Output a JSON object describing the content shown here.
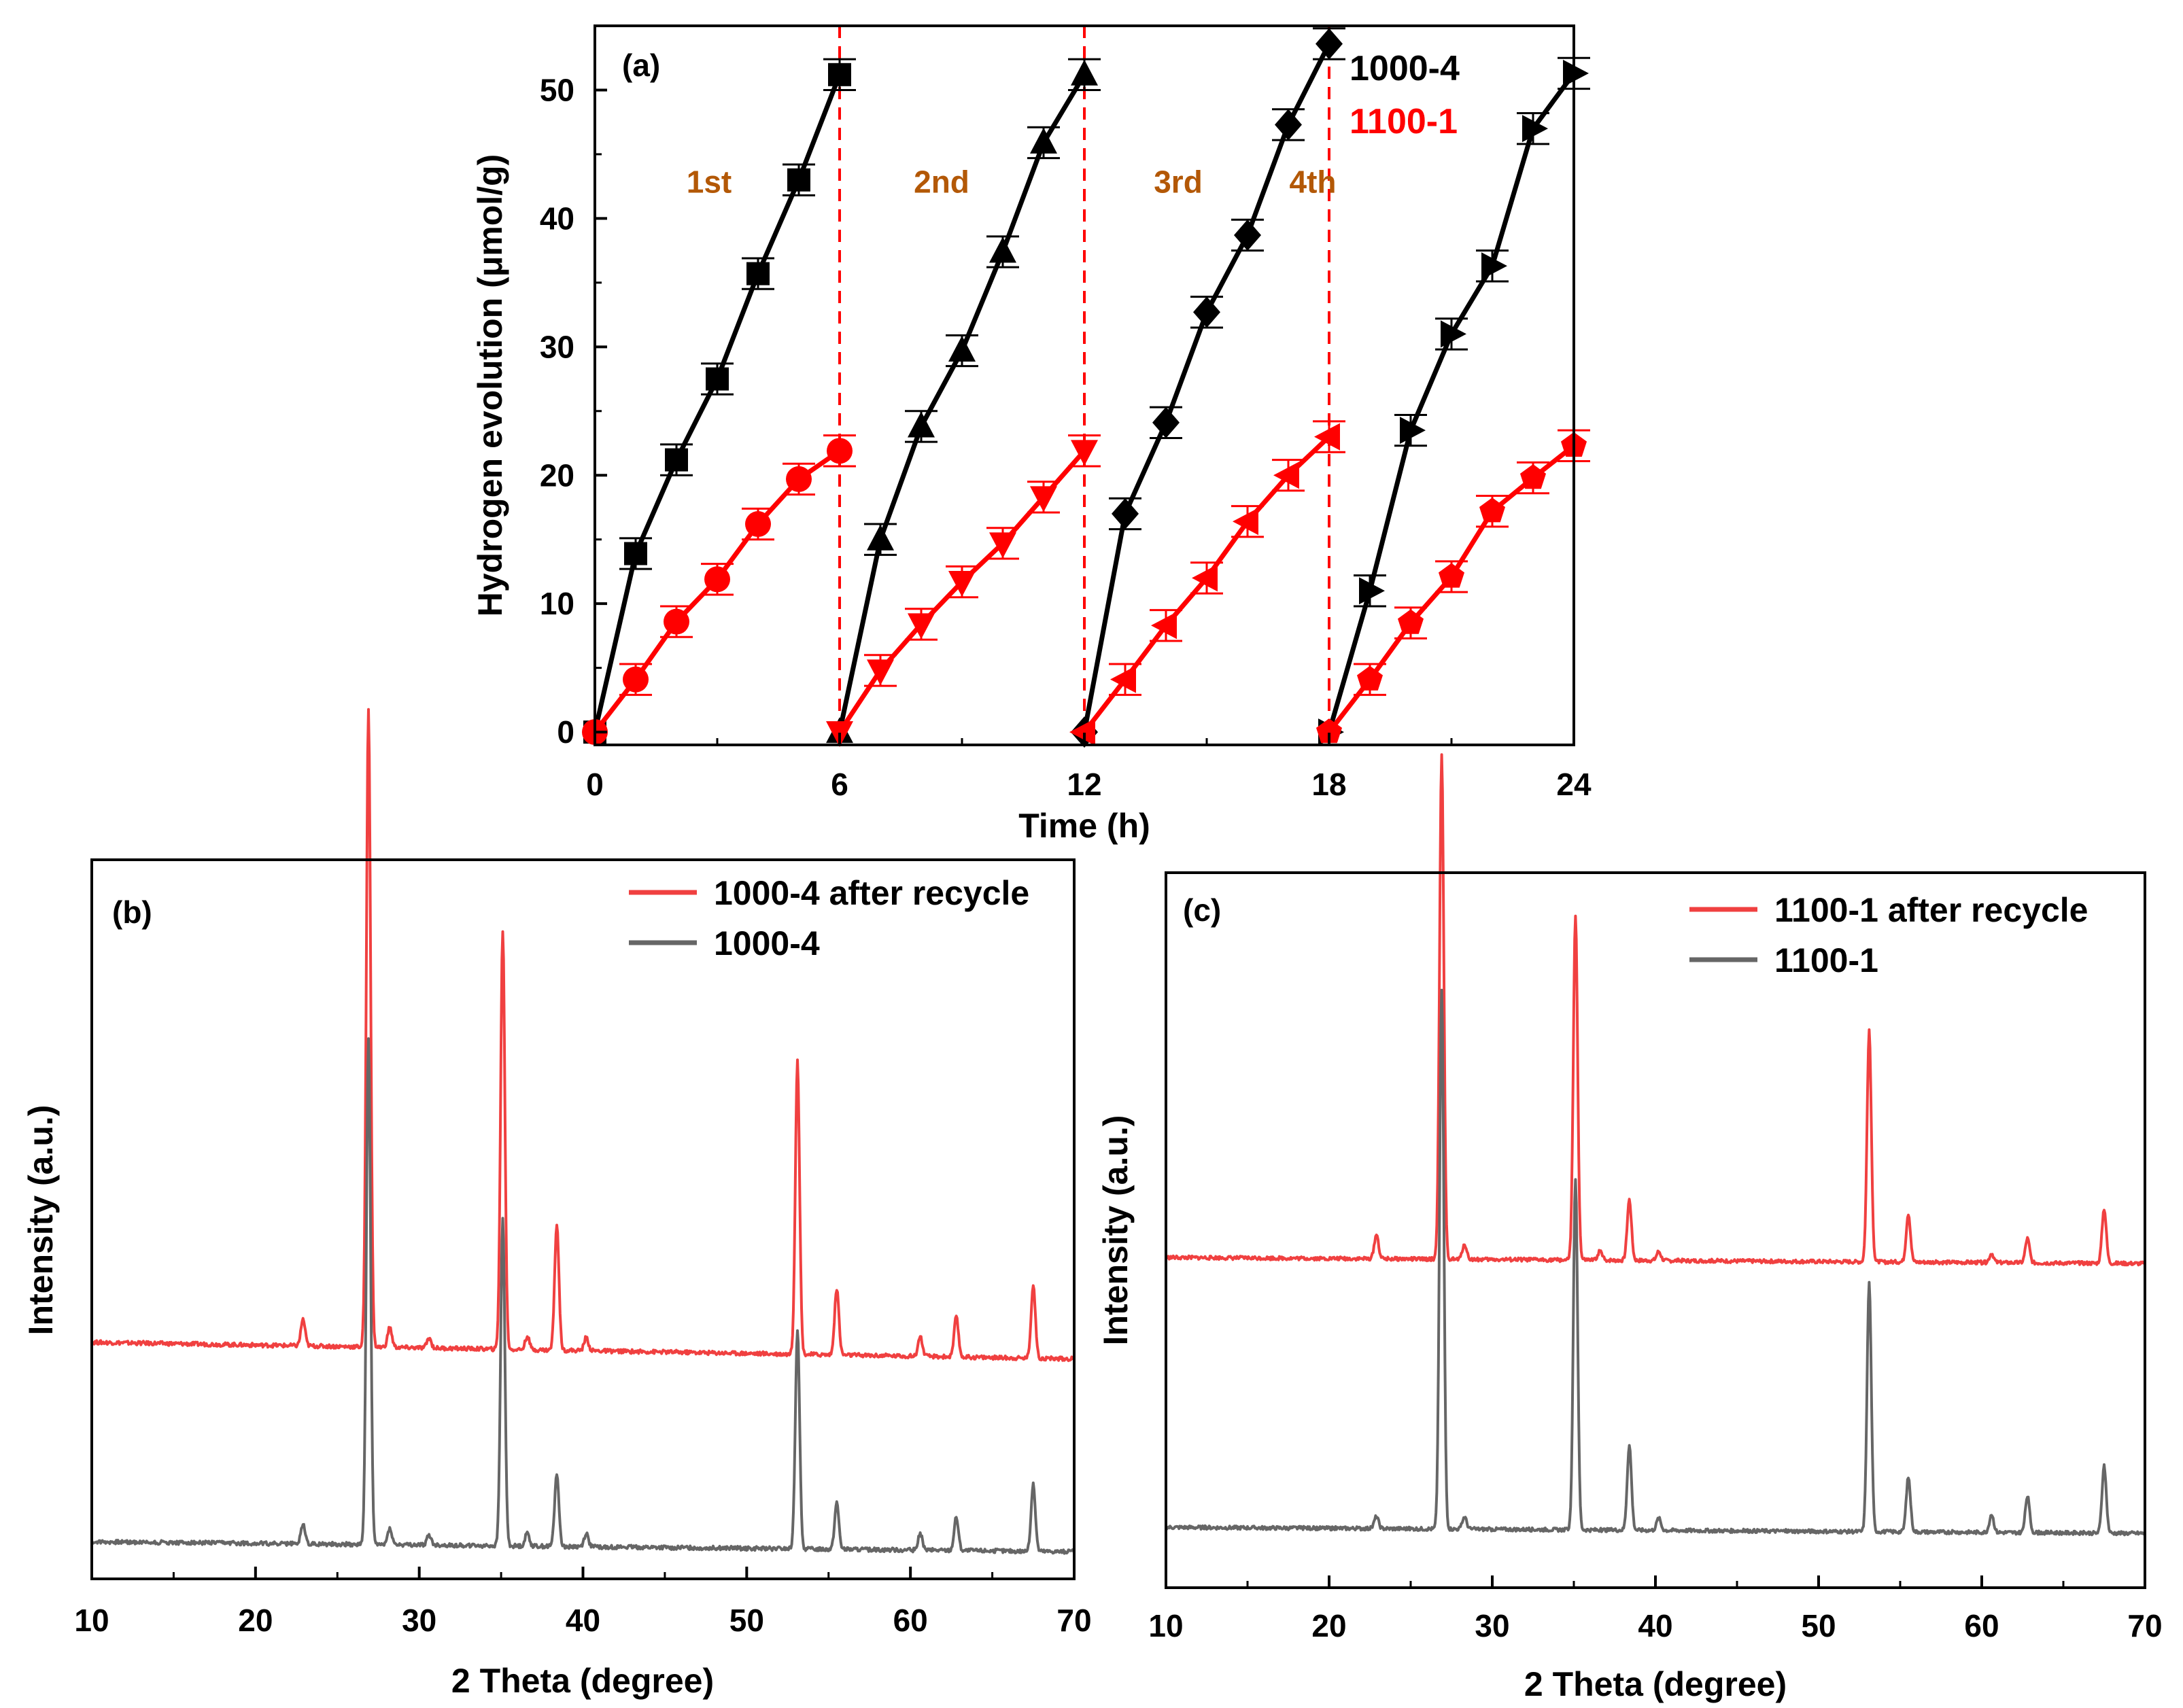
{
  "colors": {
    "black": "#000000",
    "red": "#ff0000",
    "red_xrd": "#f04040",
    "gray_xrd": "#666666",
    "cycle_label": "#b35806",
    "divider": "#ff0000"
  },
  "chart_data": [
    {
      "panel": "(a)",
      "type": "line",
      "xlabel": "Time (h)",
      "ylabel": "Hydrogen evolution (μmol/g)",
      "xlim": [
        0,
        24
      ],
      "ylim": [
        -1,
        55
      ],
      "xticks": [
        "0",
        "6",
        "12",
        "18",
        "24"
      ],
      "yticks": [
        "0",
        "10",
        "20",
        "30",
        "40",
        "50"
      ],
      "dividers_x": [
        6,
        12,
        18
      ],
      "cycle_labels": [
        {
          "text": "1st",
          "x": 2.8,
          "y": 42
        },
        {
          "text": "2nd",
          "x": 8.5,
          "y": 42
        },
        {
          "text": "3rd",
          "x": 14.3,
          "y": 42
        },
        {
          "text": "4th",
          "x": 17.6,
          "y": 42
        }
      ],
      "legend": [
        {
          "text": "1000-4",
          "color": "#000000"
        },
        {
          "text": "1100-1",
          "color": "#ff0000"
        }
      ],
      "error": 1.2,
      "series": [
        {
          "name": "1000-4 cycle 1",
          "color": "#000000",
          "marker": "square",
          "x": [
            0,
            1,
            2,
            3,
            4,
            5,
            6
          ],
          "y": [
            0,
            13.9,
            21.2,
            27.5,
            35.7,
            43.0,
            51.2
          ]
        },
        {
          "name": "1000-4 cycle 2",
          "color": "#000000",
          "marker": "triangle-up",
          "x": [
            6,
            7,
            8,
            9,
            10,
            11,
            12
          ],
          "y": [
            0,
            15.0,
            23.8,
            29.7,
            37.4,
            45.9,
            51.2
          ]
        },
        {
          "name": "1000-4 cycle 3",
          "color": "#000000",
          "marker": "diamond",
          "x": [
            12,
            13,
            14,
            15,
            16,
            17,
            18
          ],
          "y": [
            0,
            17.0,
            24.1,
            32.7,
            38.7,
            47.3,
            53.6
          ]
        },
        {
          "name": "1000-4 cycle 4",
          "color": "#000000",
          "marker": "triangle-right",
          "x": [
            18,
            19,
            20,
            21,
            22,
            23,
            24
          ],
          "y": [
            0,
            11.0,
            23.5,
            31.0,
            36.3,
            47.0,
            51.3
          ]
        },
        {
          "name": "1100-1 cycle 1",
          "color": "#ff0000",
          "marker": "circle",
          "x": [
            0,
            1,
            2,
            3,
            4,
            5,
            6
          ],
          "y": [
            0,
            4.1,
            8.6,
            11.9,
            16.2,
            19.7,
            21.9
          ]
        },
        {
          "name": "1100-1 cycle 2",
          "color": "#ff0000",
          "marker": "triangle-down",
          "x": [
            6,
            7,
            8,
            9,
            10,
            11,
            12
          ],
          "y": [
            0,
            4.8,
            8.4,
            11.7,
            14.7,
            18.3,
            21.9
          ]
        },
        {
          "name": "1100-1 cycle 3",
          "color": "#ff0000",
          "marker": "triangle-left",
          "x": [
            12,
            13,
            14,
            15,
            16,
            17,
            18
          ],
          "y": [
            0,
            4.1,
            8.3,
            12.0,
            16.4,
            20.0,
            23.0
          ]
        },
        {
          "name": "1100-1 cycle 4",
          "color": "#ff0000",
          "marker": "pentagon",
          "x": [
            18,
            19,
            20,
            21,
            22,
            23,
            24
          ],
          "y": [
            0,
            4.1,
            8.5,
            12.1,
            17.2,
            19.8,
            22.3
          ]
        }
      ]
    },
    {
      "panel": "(b)",
      "type": "line",
      "xlabel": "2 Theta (degree)",
      "ylabel": "Intensity (a.u.)",
      "xlim": [
        10,
        70
      ],
      "xticks": [
        "10",
        "20",
        "30",
        "40",
        "50",
        "60",
        "70"
      ],
      "legend": [
        {
          "text": "1000-4 after recycle",
          "color": "#f04040"
        },
        {
          "text": "1000-4",
          "color": "#666666"
        }
      ],
      "baseline_x": [
        10,
        70
      ],
      "series": [
        {
          "name": "1000-4 after recycle",
          "color": "#f04040",
          "baseline": [
            0.315,
            0.29
          ],
          "peaks": [
            [
              22.9,
              0.04
            ],
            [
              26.9,
              0.96
            ],
            [
              28.2,
              0.03
            ],
            [
              30.6,
              0.015
            ],
            [
              35.1,
              0.63
            ],
            [
              36.6,
              0.02
            ],
            [
              38.4,
              0.19
            ],
            [
              40.2,
              0.02
            ],
            [
              53.1,
              0.44
            ],
            [
              55.5,
              0.1
            ],
            [
              60.6,
              0.03
            ],
            [
              62.8,
              0.06
            ],
            [
              67.5,
              0.11
            ]
          ]
        },
        {
          "name": "1000-4",
          "color": "#666666",
          "baseline": [
            0.015,
            0.0
          ],
          "peaks": [
            [
              22.9,
              0.03
            ],
            [
              26.9,
              0.76
            ],
            [
              28.2,
              0.025
            ],
            [
              30.6,
              0.015
            ],
            [
              35.1,
              0.49
            ],
            [
              36.6,
              0.02
            ],
            [
              38.4,
              0.11
            ],
            [
              40.2,
              0.02
            ],
            [
              53.1,
              0.33
            ],
            [
              55.5,
              0.07
            ],
            [
              60.6,
              0.025
            ],
            [
              62.8,
              0.05
            ],
            [
              67.5,
              0.1
            ]
          ]
        }
      ]
    },
    {
      "panel": "(c)",
      "type": "line",
      "xlabel": "2 Theta (degree)",
      "ylabel": "Intensity (a.u.)",
      "xlim": [
        10,
        70
      ],
      "xticks": [
        "10",
        "20",
        "30",
        "40",
        "50",
        "60",
        "70"
      ],
      "legend": [
        {
          "text": "1100-1 after recycle",
          "color": "#f04040"
        },
        {
          "text": "1100-1",
          "color": "#666666"
        }
      ],
      "baseline_x": [
        10,
        70
      ],
      "series": [
        {
          "name": "1100-1 after recycle",
          "color": "#f04040",
          "baseline": [
            0.455,
            0.445
          ],
          "peaks": [
            [
              22.9,
              0.04
            ],
            [
              26.9,
              0.83
            ],
            [
              28.3,
              0.025
            ],
            [
              35.1,
              0.57
            ],
            [
              36.6,
              0.015
            ],
            [
              38.4,
              0.1
            ],
            [
              40.2,
              0.015
            ],
            [
              53.1,
              0.38
            ],
            [
              55.5,
              0.08
            ],
            [
              60.6,
              0.015
            ],
            [
              62.8,
              0.04
            ],
            [
              67.5,
              0.09
            ]
          ]
        },
        {
          "name": "1100-1",
          "color": "#666666",
          "baseline": [
            0.01,
            0.0
          ],
          "peaks": [
            [
              22.9,
              0.02
            ],
            [
              26.9,
              0.89
            ],
            [
              28.3,
              0.02
            ],
            [
              35.1,
              0.58
            ],
            [
              38.4,
              0.14
            ],
            [
              40.2,
              0.02
            ],
            [
              53.1,
              0.41
            ],
            [
              55.5,
              0.09
            ],
            [
              60.6,
              0.03
            ],
            [
              62.8,
              0.06
            ],
            [
              67.5,
              0.11
            ]
          ]
        }
      ]
    }
  ]
}
